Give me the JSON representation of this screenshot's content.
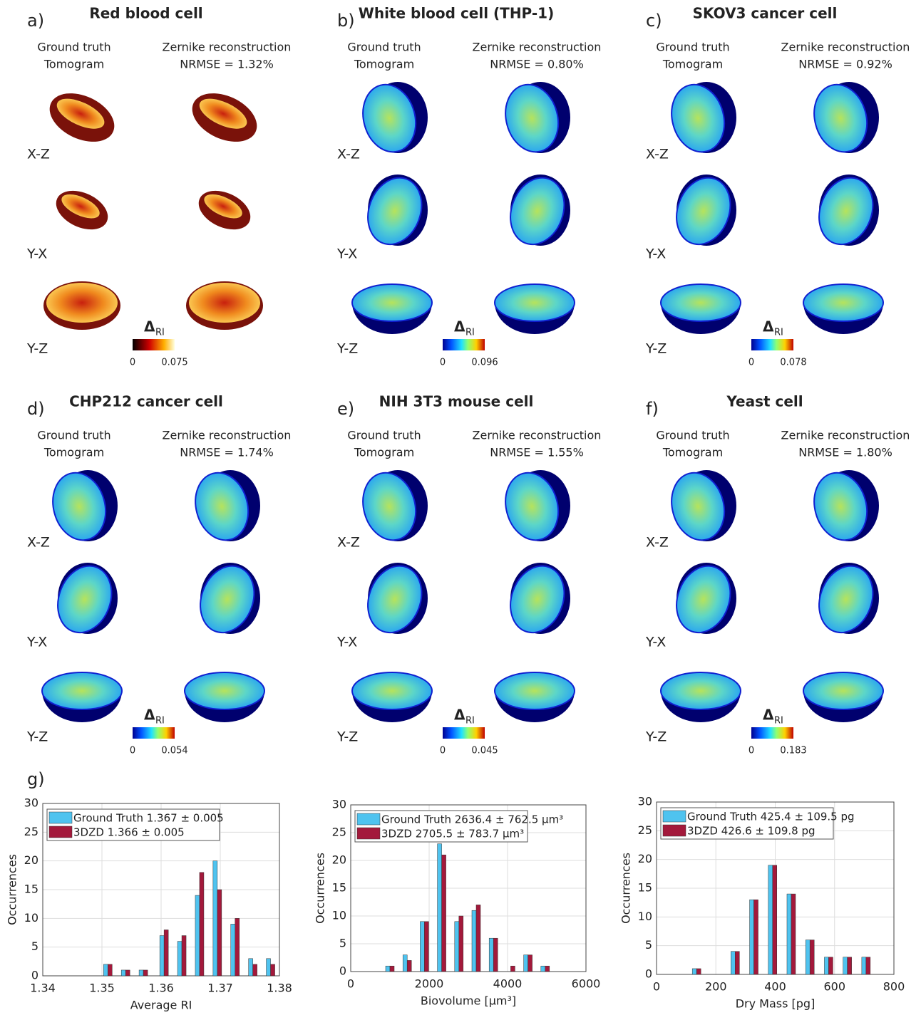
{
  "panels": [
    {
      "letter": "a)",
      "title": "Red blood cell",
      "ground_truth": [
        "Ground truth",
        "Tomogram"
      ],
      "reconstruction": [
        "Zernike reconstruction",
        "NRMSE = 1.32%"
      ],
      "views": [
        "X-Z",
        "Y-X",
        "Y-Z"
      ],
      "colormap": "hot",
      "colorbar": {
        "symbol": "Δ",
        "subscript": "RI",
        "min": 0,
        "max": 0.075
      }
    },
    {
      "letter": "b)",
      "title": "White blood cell (THP-1)",
      "ground_truth": [
        "Ground truth",
        "Tomogram"
      ],
      "reconstruction": [
        "Zernike reconstruction",
        "NRMSE = 0.80%"
      ],
      "views": [
        "X-Z",
        "Y-X",
        "Y-Z"
      ],
      "colormap": "jet",
      "colorbar": {
        "symbol": "Δ",
        "subscript": "RI",
        "min": 0,
        "max": 0.096
      }
    },
    {
      "letter": "c)",
      "title": "SKOV3 cancer cell",
      "ground_truth": [
        "Ground truth",
        "Tomogram"
      ],
      "reconstruction": [
        "Zernike reconstruction",
        "NRMSE = 0.92%"
      ],
      "views": [
        "X-Z",
        "Y-X",
        "Y-Z"
      ],
      "colormap": "jet",
      "colorbar": {
        "symbol": "Δ",
        "subscript": "RI",
        "min": 0,
        "max": 0.078
      }
    },
    {
      "letter": "d)",
      "title": "CHP212 cancer cell",
      "ground_truth": [
        "Ground truth",
        "Tomogram"
      ],
      "reconstruction": [
        "Zernike reconstruction",
        "NRMSE = 1.74%"
      ],
      "views": [
        "X-Z",
        "Y-X",
        "Y-Z"
      ],
      "colormap": "jet",
      "colorbar": {
        "symbol": "Δ",
        "subscript": "RI",
        "min": 0,
        "max": 0.054
      }
    },
    {
      "letter": "e)",
      "title": "NIH 3T3 mouse cell",
      "ground_truth": [
        "Ground truth",
        "Tomogram"
      ],
      "reconstruction": [
        "Zernike reconstruction",
        "NRMSE = 1.55%"
      ],
      "views": [
        "X-Z",
        "Y-X",
        "Y-Z"
      ],
      "colormap": "jet",
      "colorbar": {
        "symbol": "Δ",
        "subscript": "RI",
        "min": 0,
        "max": 0.045
      }
    },
    {
      "letter": "f)",
      "title": "Yeast cell",
      "ground_truth": [
        "Ground truth",
        "Tomogram"
      ],
      "reconstruction": [
        "Zernike reconstruction",
        "NRMSE = 1.80%"
      ],
      "views": [
        "X-Z",
        "Y-X",
        "Y-Z"
      ],
      "colormap": "jet",
      "colorbar": {
        "symbol": "Δ",
        "subscript": "RI",
        "min": 0,
        "max": 0.183
      }
    }
  ],
  "panel_g_label": "g)",
  "chart_data": [
    {
      "type": "bar",
      "xlabel": "Average RI",
      "ylabel": "Occurrences",
      "x": [
        1.351,
        1.354,
        1.357,
        1.3605,
        1.3635,
        1.3665,
        1.3695,
        1.3725,
        1.3755,
        1.3785
      ],
      "series": [
        {
          "name": "Ground Truth 1.367 ± 0.005",
          "color": "#4fc3ef",
          "values": [
            2,
            1,
            1,
            7,
            6,
            14,
            20,
            9,
            3,
            3
          ]
        },
        {
          "name": "3DZD 1.366 ± 0.005",
          "color": "#a3193b",
          "values": [
            2,
            1,
            1,
            8,
            7,
            18,
            15,
            10,
            2,
            2
          ]
        }
      ],
      "xlim": [
        1.34,
        1.38
      ],
      "xticks": [
        1.34,
        1.35,
        1.36,
        1.37,
        1.38
      ],
      "ylim": [
        0,
        30
      ],
      "yticks": [
        0,
        5,
        10,
        15,
        20,
        25,
        30
      ],
      "grid": true,
      "legend": "upper left"
    },
    {
      "type": "bar",
      "xlabel": "Biovolume [µm³]",
      "ylabel": "Occurrences",
      "x": [
        1000,
        1440,
        1880,
        2320,
        2760,
        3200,
        3640,
        4080,
        4520,
        4960
      ],
      "series": [
        {
          "name": "Ground Truth 2636.4 ± 762.5 µm³",
          "color": "#4fc3ef",
          "values": [
            1,
            3,
            9,
            23,
            9,
            11,
            6,
            0,
            3,
            1
          ]
        },
        {
          "name": "3DZD 2705.5 ± 783.7 µm³",
          "color": "#a3193b",
          "values": [
            1,
            2,
            9,
            21,
            10,
            12,
            6,
            1,
            3,
            1
          ]
        }
      ],
      "xlim": [
        0,
        6000
      ],
      "xticks": [
        0,
        2000,
        4000,
        6000
      ],
      "ylim": [
        0,
        30
      ],
      "yticks": [
        0,
        5,
        10,
        15,
        20,
        25,
        30
      ],
      "grid": true,
      "legend": "upper left"
    },
    {
      "type": "bar",
      "xlabel": "Dry Mass [pg]",
      "ylabel": "Occurrences",
      "x": [
        135,
        265,
        328,
        391,
        454,
        517,
        580,
        643,
        706
      ],
      "series": [
        {
          "name": "Ground Truth 425.4 ± 109.5 pg",
          "color": "#4fc3ef",
          "values": [
            1,
            4,
            13,
            19,
            14,
            6,
            3,
            3,
            3
          ]
        },
        {
          "name": "3DZD 426.6 ± 109.8 pg",
          "color": "#a3193b",
          "values": [
            1,
            4,
            13,
            19,
            14,
            6,
            3,
            3,
            3
          ]
        }
      ],
      "xlim": [
        0,
        800
      ],
      "xticks": [
        0,
        200,
        400,
        600,
        800
      ],
      "ylim": [
        0,
        30
      ],
      "yticks": [
        0,
        5,
        10,
        15,
        20,
        25,
        30
      ],
      "grid": true,
      "legend": "upper left"
    }
  ]
}
